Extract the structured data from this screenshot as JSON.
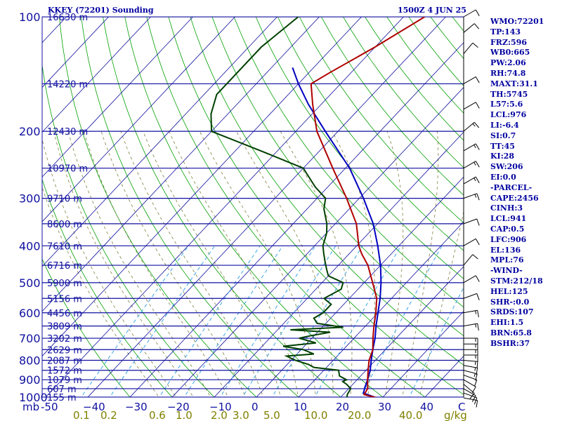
{
  "header": {
    "station": "KKEY (72201) Sounding",
    "time": "1500Z  4 JUN 25"
  },
  "colors": {
    "isobar": "#1010a0",
    "isotherm": "#1010a0",
    "dry_adiabat": "#00a000",
    "moist_adiabat": "#808040",
    "mixing_ratio": "#3aa6e8",
    "temperature": "#b00000",
    "dewpoint": "#004000",
    "parcel": "#0000c0",
    "wind": "#000000",
    "text": "#0000a0",
    "mr_label": "#808000"
  },
  "pressure_labels": [
    "100",
    "200",
    "300",
    "400",
    "500",
    "600",
    "700",
    "800",
    "900",
    "1000",
    "mb"
  ],
  "height_labels": [
    "16630 m",
    "14220 m",
    "12430 m",
    "10970 m",
    "9710 m",
    "8600 m",
    "7610 m",
    "6716 m",
    "5900 m",
    "5156 m",
    "4456 m",
    "3809 m",
    "3202 m",
    "2629 m",
    "2087 m",
    "1572 m",
    "1079 m",
    "607 m",
    "155 m"
  ],
  "temp_labels": [
    "-50",
    "−40",
    "−30",
    "−20",
    "−10",
    "0",
    "10",
    "20",
    "30",
    "40",
    "C"
  ],
  "mixing_ratio_labels": [
    "0.1",
    "0.2",
    "0.6",
    "1.0",
    "2.0",
    "3.0",
    "5.0",
    "10.0",
    "20.0",
    "40.0",
    "g/kg"
  ],
  "indices": [
    "WMO:72201",
    "TP:143",
    "FRZ:596",
    "WB0:665",
    "PW:2.06",
    "RH:74.8",
    "MAXT:31.1",
    "TH:5745",
    "L57:5.6",
    "LCL:976",
    "LI:-6.4",
    "SI:0.7",
    "TT:45",
    "KI:28",
    "SW:206",
    "EI:0.0",
    "-PARCEL-",
    "CAPE:2456",
    "CINH:3",
    "LCL:941",
    "CAP:0.5",
    "LFC:906",
    "EL:136",
    "MPL:76",
    "-WIND-",
    "STM:212/18",
    "HEL:125",
    "SHR-:0.0",
    "SRDS:107",
    "EHI:1.5",
    "BRN:65.8",
    "BSHR:37"
  ],
  "chart_data": {
    "type": "line",
    "title": "KKEY (72201) Sounding",
    "subtitle": "1500Z  4 JUN 25",
    "x_axis": {
      "label": "C",
      "range": [
        -50,
        50
      ]
    },
    "y_axis": {
      "label": "mb",
      "scale": "log",
      "range": [
        1000,
        100
      ]
    },
    "isobars": [
      100,
      150,
      200,
      250,
      300,
      350,
      400,
      450,
      500,
      550,
      600,
      650,
      700,
      750,
      800,
      850,
      900,
      950,
      1000
    ],
    "height_levels": [
      {
        "p": 100,
        "h": "16630 m"
      },
      {
        "p": 150,
        "h": "14220 m"
      },
      {
        "p": 200,
        "h": "12430 m"
      },
      {
        "p": 250,
        "h": "10970 m"
      },
      {
        "p": 300,
        "h": "9710 m"
      },
      {
        "p": 350,
        "h": "8600 m"
      },
      {
        "p": 400,
        "h": "7610 m"
      },
      {
        "p": 450,
        "h": "6716 m"
      },
      {
        "p": 500,
        "h": "5900 m"
      },
      {
        "p": 550,
        "h": "5156 m"
      },
      {
        "p": 600,
        "h": "4456 m"
      },
      {
        "p": 650,
        "h": "3809 m"
      },
      {
        "p": 700,
        "h": "3202 m"
      },
      {
        "p": 750,
        "h": "2629 m"
      },
      {
        "p": 800,
        "h": "2087 m"
      },
      {
        "p": 850,
        "h": "1572 m"
      },
      {
        "p": 900,
        "h": "1079 m"
      },
      {
        "p": 950,
        "h": "607 m"
      },
      {
        "p": 1000,
        "h": "155 m"
      }
    ],
    "mixing_ratios": [
      0.1,
      0.2,
      0.6,
      1.0,
      2.0,
      3.0,
      5.0,
      10.0,
      20.0,
      40.0
    ],
    "series": [
      {
        "key": "temperature",
        "points": [
          [
            1010,
            29.5
          ],
          [
            1000,
            28
          ],
          [
            985,
            25
          ],
          [
            950,
            24.5
          ],
          [
            925,
            23.5
          ],
          [
            900,
            22.5
          ],
          [
            850,
            20.5
          ],
          [
            800,
            18.5
          ],
          [
            750,
            17
          ],
          [
            700,
            14.5
          ],
          [
            650,
            12
          ],
          [
            600,
            9.5
          ],
          [
            550,
            6.5
          ],
          [
            500,
            2
          ],
          [
            450,
            -3
          ],
          [
            420,
            -7
          ],
          [
            400,
            -9.5
          ],
          [
            350,
            -15
          ],
          [
            300,
            -23
          ],
          [
            250,
            -33
          ],
          [
            200,
            -45
          ],
          [
            170,
            -52
          ],
          [
            150,
            -57
          ],
          [
            140,
            -55
          ],
          [
            120,
            -50
          ],
          [
            100,
            -45
          ]
        ]
      },
      {
        "key": "dewpoint",
        "points": [
          [
            1010,
            22.5
          ],
          [
            1000,
            21.5
          ],
          [
            985,
            21
          ],
          [
            950,
            20.5
          ],
          [
            925,
            18.5
          ],
          [
            910,
            17
          ],
          [
            900,
            17.5
          ],
          [
            880,
            15
          ],
          [
            850,
            13.5
          ],
          [
            835,
            7
          ],
          [
            820,
            5
          ],
          [
            800,
            1
          ],
          [
            780,
            -2
          ],
          [
            770,
            4
          ],
          [
            750,
            0.5
          ],
          [
            735,
            -5
          ],
          [
            720,
            2
          ],
          [
            700,
            -3
          ],
          [
            690,
            -1
          ],
          [
            675,
            3
          ],
          [
            665,
            -7
          ],
          [
            655,
            5
          ],
          [
            640,
            -2
          ],
          [
            620,
            -4
          ],
          [
            600,
            -3
          ],
          [
            570,
            -3
          ],
          [
            550,
            -6
          ],
          [
            520,
            -4
          ],
          [
            500,
            -5
          ],
          [
            480,
            -10
          ],
          [
            460,
            -12
          ],
          [
            440,
            -14
          ],
          [
            420,
            -16
          ],
          [
            400,
            -18
          ],
          [
            370,
            -20
          ],
          [
            350,
            -22
          ],
          [
            320,
            -26
          ],
          [
            300,
            -28
          ],
          [
            280,
            -33
          ],
          [
            250,
            -40
          ],
          [
            225,
            -54
          ],
          [
            200,
            -70
          ],
          [
            180,
            -74
          ],
          [
            160,
            -77
          ],
          [
            150,
            -77
          ],
          [
            120,
            -77
          ],
          [
            100,
            -75
          ]
        ]
      },
      {
        "key": "parcel",
        "points": [
          [
            1010,
            29.5
          ],
          [
            976,
            24.5
          ],
          [
            941,
            23.5
          ],
          [
            900,
            22.5
          ],
          [
            850,
            21
          ],
          [
            800,
            19
          ],
          [
            750,
            17
          ],
          [
            700,
            15
          ],
          [
            650,
            12.5
          ],
          [
            600,
            10
          ],
          [
            550,
            7.3
          ],
          [
            500,
            4
          ],
          [
            450,
            0
          ],
          [
            400,
            -5
          ],
          [
            350,
            -11
          ],
          [
            300,
            -19
          ],
          [
            250,
            -29
          ],
          [
            200,
            -43
          ],
          [
            170,
            -53
          ],
          [
            150,
            -60
          ],
          [
            136,
            -65
          ]
        ]
      }
    ],
    "winds": [
      {
        "p": 1005,
        "dir": 100,
        "spd": 10
      },
      {
        "p": 975,
        "dir": 110,
        "spd": 10
      },
      {
        "p": 950,
        "dir": 120,
        "spd": 10
      },
      {
        "p": 925,
        "dir": 130,
        "spd": 10
      },
      {
        "p": 900,
        "dir": 120,
        "spd": 10
      },
      {
        "p": 875,
        "dir": 110,
        "spd": 10
      },
      {
        "p": 850,
        "dir": 105,
        "spd": 15
      },
      {
        "p": 825,
        "dir": 100,
        "spd": 15
      },
      {
        "p": 800,
        "dir": 95,
        "spd": 15
      },
      {
        "p": 775,
        "dir": 90,
        "spd": 15
      },
      {
        "p": 750,
        "dir": 90,
        "spd": 15
      },
      {
        "p": 725,
        "dir": 90,
        "spd": 15
      },
      {
        "p": 700,
        "dir": 90,
        "spd": 15
      },
      {
        "p": 650,
        "dir": 80,
        "spd": 15
      },
      {
        "p": 600,
        "dir": 80,
        "spd": 15
      },
      {
        "p": 550,
        "dir": 70,
        "spd": 10
      },
      {
        "p": 500,
        "dir": 60,
        "spd": 10
      },
      {
        "p": 450,
        "dir": 40,
        "spd": 10
      },
      {
        "p": 400,
        "dir": 60,
        "spd": 10
      },
      {
        "p": 350,
        "dir": 70,
        "spd": 10
      },
      {
        "p": 300,
        "dir": 70,
        "spd": 15
      },
      {
        "p": 275,
        "dir": 60,
        "spd": 15
      },
      {
        "p": 250,
        "dir": 60,
        "spd": 15
      },
      {
        "p": 225,
        "dir": 60,
        "spd": 15
      },
      {
        "p": 200,
        "dir": 50,
        "spd": 15
      },
      {
        "p": 175,
        "dir": 60,
        "spd": 10
      },
      {
        "p": 150,
        "dir": 60,
        "spd": 10
      },
      {
        "p": 125,
        "dir": 40,
        "spd": 10
      },
      {
        "p": 110,
        "dir": 50,
        "spd": 10
      },
      {
        "p": 100,
        "dir": 60,
        "spd": 10
      }
    ]
  }
}
